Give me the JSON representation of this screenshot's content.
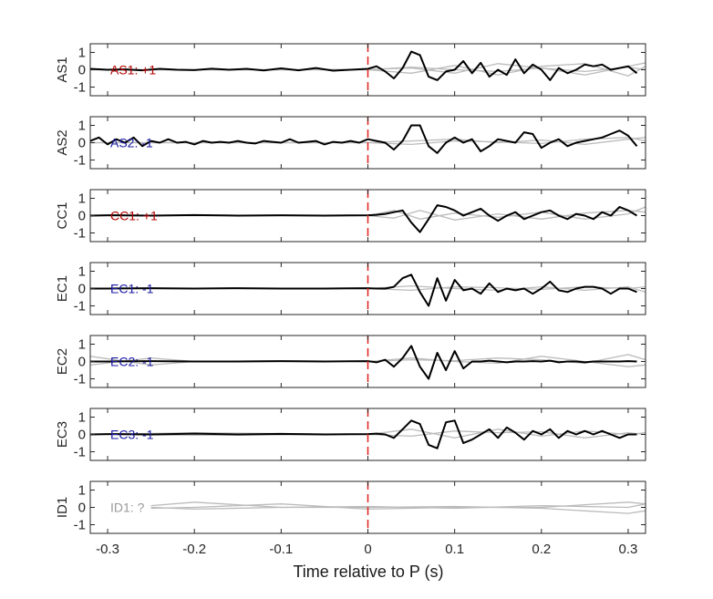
{
  "chart_data": {
    "type": "line",
    "xlabel": "Time relative to P (s)",
    "xlim": [
      -0.32,
      0.32
    ],
    "ylim": [
      -1.5,
      1.5
    ],
    "xticks": [
      -0.3,
      -0.2,
      -0.1,
      0,
      0.1,
      0.2,
      0.3
    ],
    "xtick_labels": [
      "-0.3",
      "-0.2",
      "-0.1",
      "0",
      "0.1",
      "0.2",
      "0.3"
    ],
    "yticks": [
      -1,
      0,
      1
    ],
    "ytick_labels": [
      "-1",
      "0",
      "1"
    ],
    "marker_x": 0,
    "colors": {
      "highlight": "#000000",
      "background_traces": "#bbbbbb",
      "marker": "#e0201b",
      "positive_polarity": "#b30000",
      "negative_polarity": "#1a1aa6",
      "unknown_polarity": "#999999"
    },
    "panels": [
      {
        "ylabel": "AS1",
        "annotation": "AS1: +1",
        "annotation_color": "#b30000",
        "highlight": {
          "x": [
            -0.32,
            -0.3,
            -0.28,
            -0.26,
            -0.24,
            -0.22,
            -0.2,
            -0.18,
            -0.16,
            -0.14,
            -0.12,
            -0.1,
            -0.08,
            -0.06,
            -0.04,
            -0.02,
            0,
            0.01,
            0.02,
            0.03,
            0.04,
            0.05,
            0.06,
            0.07,
            0.08,
            0.09,
            0.1,
            0.11,
            0.12,
            0.13,
            0.14,
            0.15,
            0.16,
            0.17,
            0.18,
            0.19,
            0.2,
            0.21,
            0.22,
            0.23,
            0.24,
            0.25,
            0.26,
            0.27,
            0.28,
            0.29,
            0.3,
            0.31
          ],
          "y": [
            0.05,
            0.0,
            0.02,
            -0.03,
            0.05,
            0.0,
            -0.02,
            0.06,
            0.0,
            0.05,
            -0.04,
            0.08,
            -0.03,
            0.1,
            -0.05,
            0.0,
            0.05,
            0.2,
            -0.1,
            -0.5,
            0.1,
            1.05,
            0.85,
            -0.4,
            -0.6,
            -0.1,
            0.0,
            0.5,
            -0.2,
            0.4,
            -0.4,
            0.0,
            -0.3,
            0.6,
            -0.2,
            0.3,
            0.0,
            -0.6,
            0.1,
            -0.2,
            0.0,
            0.3,
            0.2,
            0.3,
            0.0,
            0.1,
            0.2,
            -0.2
          ]
        },
        "background": [
          {
            "x": [
              -0.32,
              -0.1,
              0,
              0.05,
              0.1,
              0.15,
              0.2,
              0.25,
              0.3,
              0.32
            ],
            "y": [
              0,
              0,
              0.02,
              0.1,
              -0.2,
              0.35,
              0.1,
              -0.3,
              0.2,
              0.4
            ]
          },
          {
            "x": [
              -0.32,
              -0.1,
              0,
              0.05,
              0.1,
              0.15,
              0.2,
              0.25,
              0.3,
              0.32
            ],
            "y": [
              0,
              0,
              0.0,
              -0.2,
              0.25,
              -0.3,
              0.2,
              0.35,
              -0.35,
              0.2
            ]
          },
          {
            "x": [
              -0.32,
              0,
              0.05,
              0.1,
              0.15,
              0.2,
              0.25,
              0.3,
              0.32
            ],
            "y": [
              0,
              0,
              0.15,
              0.0,
              -0.1,
              0.1,
              -0.1,
              0.15,
              0.0
            ]
          }
        ]
      },
      {
        "ylabel": "AS2",
        "annotation": "AS2: -1",
        "annotation_color": "#1a1aa6",
        "highlight": {
          "x": [
            -0.32,
            -0.31,
            -0.3,
            -0.29,
            -0.28,
            -0.27,
            -0.26,
            -0.25,
            -0.24,
            -0.23,
            -0.22,
            -0.21,
            -0.2,
            -0.19,
            -0.18,
            -0.17,
            -0.16,
            -0.15,
            -0.14,
            -0.13,
            -0.12,
            -0.11,
            -0.1,
            -0.09,
            -0.08,
            -0.07,
            -0.06,
            -0.05,
            -0.04,
            -0.03,
            -0.02,
            -0.01,
            0,
            0.01,
            0.02,
            0.03,
            0.04,
            0.05,
            0.06,
            0.07,
            0.08,
            0.09,
            0.1,
            0.11,
            0.12,
            0.13,
            0.14,
            0.15,
            0.16,
            0.17,
            0.18,
            0.19,
            0.2,
            0.21,
            0.22,
            0.23,
            0.24,
            0.25,
            0.26,
            0.27,
            0.28,
            0.29,
            0.3,
            0.31
          ],
          "y": [
            0.1,
            0.3,
            -0.1,
            0.2,
            0.0,
            0.3,
            -0.2,
            0.1,
            0.0,
            0.2,
            0.0,
            0.05,
            -0.1,
            0.1,
            0.0,
            0.05,
            0.0,
            0.1,
            0.0,
            -0.05,
            0.1,
            0.05,
            0.0,
            0.2,
            0.0,
            0.05,
            0.1,
            -0.1,
            0.05,
            0.0,
            0.1,
            0.0,
            0.2,
            0.1,
            0.0,
            -0.4,
            0.1,
            1.0,
            1.0,
            -0.2,
            -0.6,
            0.0,
            0.3,
            0.0,
            0.2,
            -0.5,
            -0.2,
            0.2,
            0.1,
            0.0,
            0.6,
            0.5,
            -0.3,
            0.0,
            0.2,
            -0.2,
            0.0,
            0.1,
            0.2,
            0.3,
            0.5,
            0.7,
            0.4,
            -0.2
          ]
        },
        "background": [
          {
            "x": [
              -0.32,
              0,
              0.05,
              0.1,
              0.15,
              0.2,
              0.25,
              0.3,
              0.32
            ],
            "y": [
              0,
              0,
              0.1,
              0.2,
              0.0,
              0.15,
              -0.1,
              0.2,
              0.3
            ]
          },
          {
            "x": [
              -0.32,
              0,
              0.05,
              0.1,
              0.15,
              0.2,
              0.25,
              0.3,
              0.32
            ],
            "y": [
              0,
              0,
              -0.1,
              0.1,
              0.05,
              -0.05,
              0.2,
              0.3,
              0.1
            ]
          }
        ]
      },
      {
        "ylabel": "CC1",
        "annotation": "CC1: +1",
        "annotation_color": "#b30000",
        "highlight": {
          "x": [
            -0.32,
            -0.3,
            -0.25,
            -0.2,
            -0.15,
            -0.1,
            -0.05,
            0,
            0.01,
            0.02,
            0.03,
            0.04,
            0.05,
            0.06,
            0.07,
            0.08,
            0.09,
            0.1,
            0.11,
            0.12,
            0.13,
            0.14,
            0.15,
            0.16,
            0.17,
            0.18,
            0.19,
            0.2,
            0.21,
            0.22,
            0.23,
            0.24,
            0.25,
            0.26,
            0.27,
            0.28,
            0.29,
            0.3,
            0.31
          ],
          "y": [
            0,
            0.02,
            0.0,
            0.03,
            0.0,
            0.02,
            0.0,
            0.02,
            0.05,
            0.1,
            0.2,
            0.3,
            -0.4,
            -0.95,
            -0.2,
            0.6,
            0.5,
            0.3,
            0.0,
            0.2,
            0.4,
            0.0,
            -0.3,
            0.0,
            0.2,
            -0.2,
            0.0,
            0.2,
            0.3,
            0.0,
            -0.2,
            0.1,
            0.0,
            -0.2,
            0.2,
            0.0,
            0.5,
            0.3,
            0.0
          ]
        },
        "background": [
          {
            "x": [
              -0.32,
              0,
              0.03,
              0.06,
              0.1,
              0.15,
              0.2,
              0.25,
              0.3,
              0.32
            ],
            "y": [
              0,
              0,
              0.3,
              -0.2,
              0.15,
              -0.1,
              0.2,
              -0.2,
              0.1,
              0.5
            ]
          },
          {
            "x": [
              -0.32,
              0,
              0.03,
              0.06,
              0.1,
              0.15,
              0.2,
              0.25,
              0.3,
              0.32
            ],
            "y": [
              0,
              0,
              -0.15,
              0.3,
              -0.25,
              0.1,
              -0.2,
              0.15,
              0.3,
              0.2
            ]
          }
        ]
      },
      {
        "ylabel": "EC1",
        "annotation": "EC1: -1",
        "annotation_color": "#1a1aa6",
        "highlight": {
          "x": [
            -0.32,
            -0.3,
            -0.25,
            -0.2,
            -0.15,
            -0.1,
            -0.05,
            0,
            0.01,
            0.02,
            0.03,
            0.04,
            0.05,
            0.06,
            0.07,
            0.08,
            0.09,
            0.1,
            0.11,
            0.12,
            0.13,
            0.14,
            0.15,
            0.16,
            0.17,
            0.18,
            0.19,
            0.2,
            0.21,
            0.22,
            0.23,
            0.24,
            0.25,
            0.26,
            0.27,
            0.28,
            0.29,
            0.3,
            0.31
          ],
          "y": [
            0,
            0.0,
            0.02,
            0.0,
            0.02,
            0.0,
            0.0,
            0.02,
            0.0,
            0.0,
            0.1,
            0.6,
            0.8,
            -0.2,
            -1.0,
            0.6,
            -0.7,
            0.5,
            -0.1,
            0.0,
            -0.3,
            0.3,
            -0.2,
            0.0,
            -0.1,
            0.0,
            -0.3,
            0.0,
            0.4,
            -0.1,
            -0.2,
            0.0,
            0.1,
            0.1,
            0.0,
            -0.3,
            0.0,
            0.0,
            -0.2
          ]
        },
        "background": [
          {
            "x": [
              -0.32,
              0,
              0.05,
              0.1,
              0.15,
              0.2,
              0.25,
              0.3,
              0.32
            ],
            "y": [
              0,
              0,
              0.15,
              0.0,
              -0.1,
              0.1,
              -0.1,
              0.1,
              -0.2
            ]
          },
          {
            "x": [
              -0.32,
              0,
              0.05,
              0.1,
              0.15,
              0.2,
              0.25,
              0.3,
              0.32
            ],
            "y": [
              0,
              0,
              -0.1,
              0.1,
              0.05,
              -0.05,
              0.1,
              0.0,
              0.1
            ]
          }
        ]
      },
      {
        "ylabel": "EC2",
        "annotation": "EC2: -1",
        "annotation_color": "#1a1aa6",
        "highlight": {
          "x": [
            -0.32,
            -0.3,
            -0.25,
            -0.2,
            -0.15,
            -0.1,
            -0.05,
            0,
            0.01,
            0.02,
            0.03,
            0.04,
            0.05,
            0.06,
            0.07,
            0.08,
            0.09,
            0.1,
            0.11,
            0.12,
            0.13,
            0.14,
            0.15,
            0.16,
            0.17,
            0.18,
            0.19,
            0.2,
            0.21,
            0.22,
            0.23,
            0.24,
            0.25,
            0.26,
            0.27,
            0.28,
            0.29,
            0.3,
            0.31
          ],
          "y": [
            0,
            0.0,
            0.02,
            0.0,
            0.0,
            0.02,
            0.0,
            0.02,
            -0.05,
            0.1,
            -0.3,
            0.2,
            0.9,
            -0.3,
            -1.0,
            0.5,
            -0.5,
            0.6,
            -0.4,
            0.0,
            0.0,
            0.05,
            0.0,
            -0.05,
            0.0,
            0.0,
            0.02,
            0.0,
            0.05,
            -0.05,
            0.0,
            0.0,
            -0.05,
            0.0,
            0.0,
            0.0,
            0.0,
            0.02,
            0.0
          ]
        },
        "background": [
          {
            "x": [
              -0.32,
              -0.25,
              -0.2,
              -0.1,
              0,
              0.05,
              0.1,
              0.15,
              0.2,
              0.25,
              0.3,
              0.32
            ],
            "y": [
              0.3,
              -0.2,
              0.0,
              0.05,
              0.0,
              0.2,
              0.0,
              -0.1,
              0.3,
              0.0,
              -0.3,
              -0.2
            ]
          },
          {
            "x": [
              -0.32,
              -0.25,
              -0.2,
              -0.1,
              0,
              0.05,
              0.1,
              0.15,
              0.2,
              0.25,
              0.3,
              0.32
            ],
            "y": [
              -0.2,
              0.2,
              0.0,
              0.0,
              0.0,
              0.1,
              0.05,
              0.2,
              0.1,
              -0.1,
              0.4,
              0.1
            ]
          }
        ]
      },
      {
        "ylabel": "EC3",
        "annotation": "EC3: -1",
        "annotation_color": "#1a1aa6",
        "highlight": {
          "x": [
            -0.32,
            -0.3,
            -0.25,
            -0.2,
            -0.15,
            -0.1,
            -0.05,
            0,
            0.01,
            0.02,
            0.03,
            0.04,
            0.05,
            0.06,
            0.07,
            0.08,
            0.09,
            0.1,
            0.11,
            0.12,
            0.13,
            0.14,
            0.15,
            0.16,
            0.17,
            0.18,
            0.19,
            0.2,
            0.21,
            0.22,
            0.23,
            0.24,
            0.25,
            0.26,
            0.27,
            0.28,
            0.29,
            0.3,
            0.31
          ],
          "y": [
            0,
            0.02,
            0.0,
            0.05,
            0.0,
            0.03,
            0.0,
            0.02,
            0.05,
            0.0,
            -0.2,
            0.3,
            0.8,
            0.6,
            -0.6,
            -0.8,
            0.7,
            0.8,
            -0.5,
            -0.3,
            0.0,
            0.3,
            -0.2,
            0.4,
            0.1,
            -0.3,
            0.2,
            0.0,
            0.3,
            -0.2,
            0.2,
            0.0,
            0.2,
            0.0,
            0.2,
            0.0,
            -0.2,
            0.0,
            0.0
          ]
        },
        "background": [
          {
            "x": [
              -0.32,
              -0.2,
              0,
              0.05,
              0.1,
              0.15,
              0.2,
              0.25,
              0.3,
              0.32
            ],
            "y": [
              0,
              0.1,
              0.0,
              0.3,
              -0.2,
              0.3,
              -0.1,
              0.2,
              0.0,
              0.1
            ]
          },
          {
            "x": [
              -0.32,
              -0.2,
              0,
              0.05,
              0.1,
              0.15,
              0.2,
              0.25,
              0.3,
              0.32
            ],
            "y": [
              0,
              -0.05,
              0.0,
              -0.1,
              0.2,
              0.1,
              0.15,
              -0.2,
              0.1,
              0.0
            ]
          }
        ]
      },
      {
        "ylabel": "ID1",
        "annotation": "ID1: ?",
        "annotation_color": "#999999",
        "highlight": {
          "x": [],
          "y": []
        },
        "background": [
          {
            "x": [
              -0.25,
              -0.2,
              -0.1,
              0,
              0.1,
              0.2,
              0.3,
              0.32
            ],
            "y": [
              0.1,
              0.3,
              0.0,
              0.05,
              -0.05,
              0.1,
              0.0,
              0.2
            ]
          },
          {
            "x": [
              -0.25,
              -0.2,
              -0.1,
              0,
              0.1,
              0.2,
              0.3,
              0.32
            ],
            "y": [
              -0.05,
              0.0,
              0.2,
              -0.1,
              0.0,
              0.0,
              0.3,
              0.2
            ]
          },
          {
            "x": [
              -0.25,
              -0.2,
              -0.1,
              0,
              0.1,
              0.2,
              0.3,
              0.32
            ],
            "y": [
              0.0,
              -0.1,
              0.0,
              0.0,
              0.05,
              -0.05,
              -0.35,
              -0.2
            ]
          }
        ]
      }
    ]
  }
}
